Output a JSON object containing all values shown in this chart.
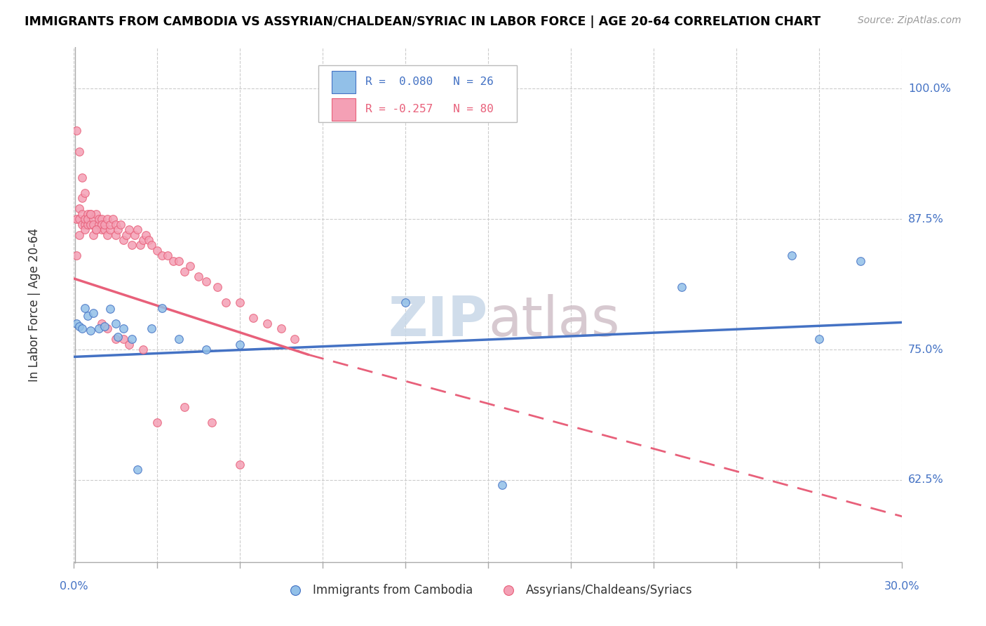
{
  "title": "IMMIGRANTS FROM CAMBODIA VS ASSYRIAN/CHALDEAN/SYRIAC IN LABOR FORCE | AGE 20-64 CORRELATION CHART",
  "source": "Source: ZipAtlas.com",
  "ylabel": "In Labor Force | Age 20-64",
  "y_ticks": [
    0.625,
    0.75,
    0.875,
    1.0
  ],
  "y_tick_labels": [
    "62.5%",
    "75.0%",
    "87.5%",
    "100.0%"
  ],
  "x_min": 0.0,
  "x_max": 0.3,
  "y_min": 0.545,
  "y_max": 1.04,
  "color_blue": "#92C0E8",
  "color_pink": "#F4A0B5",
  "color_blue_line": "#4472C4",
  "color_pink_line": "#E8607A",
  "blue_x": [
    0.001,
    0.002,
    0.003,
    0.004,
    0.005,
    0.006,
    0.007,
    0.009,
    0.011,
    0.013,
    0.015,
    0.016,
    0.018,
    0.021,
    0.023,
    0.028,
    0.032,
    0.038,
    0.048,
    0.06,
    0.12,
    0.155,
    0.22,
    0.26,
    0.27,
    0.285
  ],
  "blue_y": [
    0.775,
    0.772,
    0.77,
    0.79,
    0.782,
    0.768,
    0.785,
    0.77,
    0.772,
    0.789,
    0.775,
    0.762,
    0.77,
    0.76,
    0.635,
    0.77,
    0.79,
    0.76,
    0.75,
    0.755,
    0.795,
    0.62,
    0.81,
    0.84,
    0.76,
    0.835
  ],
  "pink_x": [
    0.001,
    0.001,
    0.002,
    0.002,
    0.002,
    0.003,
    0.003,
    0.003,
    0.004,
    0.004,
    0.004,
    0.005,
    0.005,
    0.005,
    0.006,
    0.006,
    0.007,
    0.007,
    0.007,
    0.008,
    0.008,
    0.009,
    0.009,
    0.01,
    0.01,
    0.01,
    0.011,
    0.011,
    0.012,
    0.012,
    0.013,
    0.013,
    0.014,
    0.015,
    0.015,
    0.016,
    0.017,
    0.018,
    0.019,
    0.02,
    0.021,
    0.022,
    0.023,
    0.024,
    0.025,
    0.026,
    0.027,
    0.028,
    0.03,
    0.032,
    0.034,
    0.036,
    0.038,
    0.04,
    0.042,
    0.045,
    0.048,
    0.052,
    0.055,
    0.06,
    0.065,
    0.07,
    0.075,
    0.08,
    0.001,
    0.002,
    0.003,
    0.004,
    0.006,
    0.008,
    0.01,
    0.012,
    0.015,
    0.018,
    0.02,
    0.025,
    0.03,
    0.04,
    0.05,
    0.06
  ],
  "pink_y": [
    0.84,
    0.875,
    0.86,
    0.875,
    0.885,
    0.87,
    0.88,
    0.895,
    0.87,
    0.875,
    0.865,
    0.88,
    0.87,
    0.875,
    0.87,
    0.88,
    0.875,
    0.86,
    0.87,
    0.88,
    0.865,
    0.87,
    0.875,
    0.865,
    0.875,
    0.87,
    0.865,
    0.87,
    0.875,
    0.86,
    0.865,
    0.87,
    0.875,
    0.86,
    0.87,
    0.865,
    0.87,
    0.855,
    0.86,
    0.865,
    0.85,
    0.86,
    0.865,
    0.85,
    0.855,
    0.86,
    0.855,
    0.85,
    0.845,
    0.84,
    0.84,
    0.835,
    0.835,
    0.825,
    0.83,
    0.82,
    0.815,
    0.81,
    0.795,
    0.795,
    0.78,
    0.775,
    0.77,
    0.76,
    0.96,
    0.94,
    0.915,
    0.9,
    0.88,
    0.865,
    0.775,
    0.77,
    0.76,
    0.76,
    0.755,
    0.75,
    0.68,
    0.695,
    0.68,
    0.64
  ],
  "blue_line_x0": 0.0,
  "blue_line_x1": 0.3,
  "blue_line_y0": 0.743,
  "blue_line_y1": 0.776,
  "pink_line_x0": 0.0,
  "pink_line_x1": 0.085,
  "pink_line_x1_dash": 0.3,
  "pink_line_y0": 0.818,
  "pink_line_y1": 0.745,
  "pink_line_y1_dash": 0.59
}
